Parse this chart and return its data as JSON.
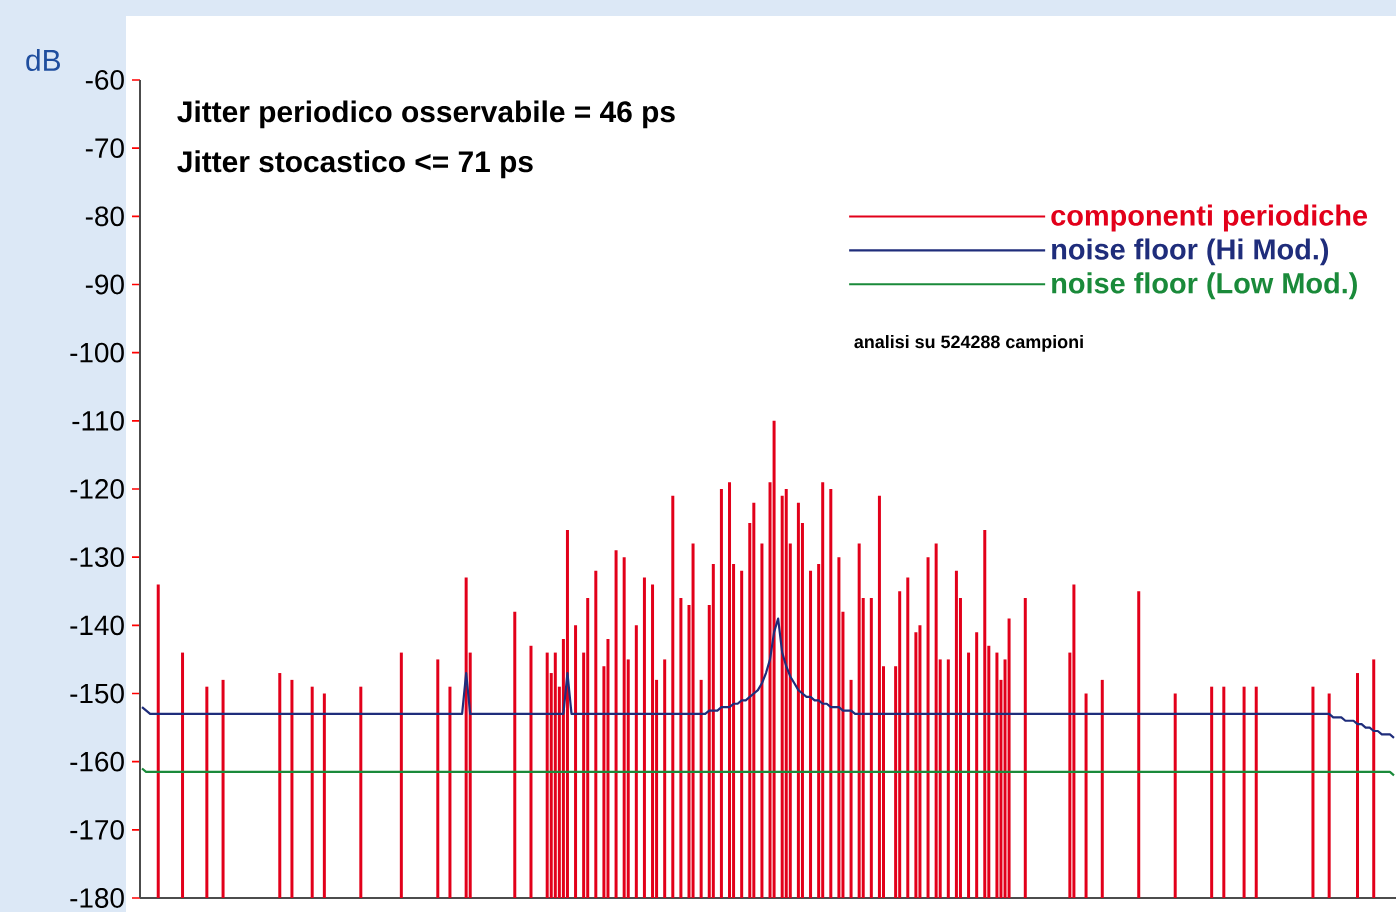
{
  "chart_data": {
    "type": "bar",
    "ylabel": "dB",
    "annotations": [
      "Jitter periodico osservabile = 46 ps",
      "Jitter stocastico <= 71 ps",
      "analisi su 524288 campioni"
    ],
    "ylim": [
      -180,
      -60
    ],
    "yticks": [
      -180,
      -170,
      -160,
      -150,
      -140,
      -130,
      -120,
      -110,
      -100,
      -90,
      -80,
      -70,
      -60
    ],
    "tick_labels": "y",
    "legend": "top right",
    "categories": [
      null,
      null,
      null,
      null,
      null,
      null,
      null,
      null,
      null,
      null,
      null,
      null,
      null,
      null,
      null,
      null,
      null,
      null,
      null,
      null,
      null,
      null,
      null,
      null,
      null,
      null,
      null,
      null,
      null,
      null,
      null,
      null,
      null,
      null,
      null,
      null,
      null,
      null,
      null,
      null,
      null,
      null,
      null,
      null,
      null,
      null,
      null,
      null,
      null,
      null,
      null,
      null,
      null,
      null,
      null,
      null,
      null,
      null,
      null,
      null,
      null,
      null,
      null,
      null,
      null,
      null,
      null,
      null,
      null,
      null,
      null,
      null,
      null,
      null,
      null,
      null,
      null,
      null,
      null,
      null,
      null,
      null,
      null,
      null,
      null,
      null,
      null,
      null,
      null,
      null,
      null,
      null,
      null,
      null,
      null,
      null,
      null,
      null,
      null,
      null,
      null,
      null,
      null,
      null,
      null,
      null,
      null,
      null,
      null,
      null,
      null,
      null,
      null,
      null,
      null,
      null,
      null,
      null,
      null,
      null,
      null,
      null,
      null,
      null,
      null,
      null,
      null,
      null,
      null,
      null,
      null,
      null,
      null,
      null,
      null,
      null,
      null,
      null,
      null,
      null,
      null,
      null,
      null,
      null,
      null,
      null,
      null,
      null,
      null,
      null,
      null,
      null,
      null,
      null,
      null,
      null,
      null,
      null,
      null,
      null,
      null,
      null,
      null,
      null,
      null,
      null,
      null,
      null,
      null,
      null,
      null,
      null,
      null,
      null,
      null,
      null,
      null,
      null,
      null,
      null,
      null,
      null,
      null,
      null,
      null,
      null,
      null,
      null,
      null,
      null,
      null,
      null,
      null,
      null,
      null,
      null,
      null,
      null,
      null,
      null,
      null,
      null,
      null,
      null,
      null,
      null,
      null,
      null,
      null,
      null,
      null,
      null,
      null,
      null,
      null,
      null,
      null,
      null,
      null,
      null,
      null,
      null,
      null,
      null,
      null,
      null,
      null,
      null,
      null,
      null,
      null,
      null,
      null,
      null,
      null,
      null,
      null,
      null,
      null,
      null,
      null,
      null,
      null,
      null,
      null,
      null,
      null,
      null,
      null,
      null,
      null,
      null,
      null,
      null,
      null,
      null,
      null,
      null,
      null,
      null,
      null,
      null,
      null,
      null,
      null,
      null,
      null,
      null,
      null,
      null,
      null,
      null,
      null,
      null,
      null,
      null,
      null,
      null,
      null,
      null,
      null,
      null,
      null,
      null,
      null,
      null,
      null,
      null,
      null,
      null,
      null,
      null,
      null,
      null,
      null,
      null,
      null,
      null,
      null,
      null,
      null,
      null,
      null,
      null,
      null,
      null,
      null,
      null,
      null,
      null
    ],
    "series": [
      {
        "name": "componenti  periodiche",
        "color": "#e2001a",
        "values": [
          null,
          null,
          null,
          null,
          46,
          null,
          null,
          null,
          null,
          null,
          36,
          null,
          null,
          null,
          null,
          null,
          31,
          null,
          null,
          null,
          32,
          null,
          null,
          null,
          null,
          null,
          null,
          null,
          null,
          null,
          null,
          null,
          null,
          null,
          33,
          null,
          null,
          32,
          null,
          null,
          null,
          null,
          31,
          null,
          null,
          30,
          null,
          null,
          null,
          null,
          null,
          null,
          null,
          null,
          31,
          null,
          null,
          null,
          null,
          null,
          null,
          null,
          null,
          null,
          36,
          null,
          null,
          null,
          null,
          null,
          null,
          null,
          null,
          35,
          null,
          null,
          31,
          null,
          null,
          null,
          47,
          36,
          null,
          null,
          null,
          null,
          null,
          null,
          null,
          null,
          null,
          null,
          42,
          null,
          null,
          null,
          37,
          null,
          null,
          null,
          36,
          33,
          36,
          31,
          38,
          54,
          null,
          40,
          null,
          36,
          44,
          null,
          48,
          null,
          34,
          38,
          null,
          51,
          null,
          50,
          35,
          null,
          40,
          null,
          47,
          null,
          46,
          32,
          null,
          35,
          null,
          59,
          null,
          44,
          null,
          43,
          52,
          null,
          32,
          null,
          43,
          49,
          null,
          60,
          null,
          61,
          49,
          null,
          48,
          null,
          55,
          58,
          null,
          52,
          null,
          61,
          70,
          null,
          59,
          60,
          52,
          null,
          58,
          55,
          null,
          48,
          null,
          49,
          61,
          null,
          60,
          null,
          50,
          42,
          null,
          32,
          null,
          52,
          44,
          null,
          44,
          null,
          59,
          34,
          null,
          null,
          34,
          45,
          null,
          47,
          null,
          39,
          40,
          null,
          50,
          null,
          52,
          35,
          null,
          35,
          null,
          48,
          44,
          null,
          36,
          null,
          39,
          null,
          54,
          37,
          null,
          36,
          32,
          35,
          41,
          null,
          null,
          null,
          44,
          null,
          null,
          null,
          null,
          null,
          null,
          null,
          null,
          null,
          null,
          36,
          46,
          null,
          null,
          30,
          null,
          null,
          null,
          32,
          null,
          null,
          null,
          null,
          null,
          null,
          null,
          null,
          45,
          null,
          null,
          null,
          null,
          null,
          null,
          null,
          null,
          30,
          null,
          null,
          null,
          null,
          null,
          null,
          null,
          null,
          31,
          null,
          null,
          31,
          null,
          null,
          null,
          null,
          31,
          null,
          null,
          31,
          null,
          null,
          null,
          null,
          null,
          null,
          null,
          null,
          null,
          null,
          null,
          null,
          null,
          31,
          null,
          null,
          null,
          30,
          null,
          null,
          null,
          null,
          null,
          null,
          33,
          null,
          null,
          null,
          35,
          null,
          null,
          null,
          null,
          null
        ],
        "base": [
          null,
          null,
          null,
          null,
          -180,
          null,
          null,
          null,
          null,
          null,
          -180,
          null,
          null,
          null,
          null,
          null,
          -180,
          null,
          null,
          null,
          -180,
          null,
          null,
          null,
          null,
          null,
          null,
          null,
          null,
          null,
          null,
          null,
          null,
          null,
          -180,
          null,
          null,
          -180,
          null,
          null,
          null,
          null,
          -180,
          null,
          null,
          -180,
          null,
          null,
          null,
          null,
          null,
          null,
          null,
          null,
          -180,
          null,
          null,
          null,
          null,
          null,
          null,
          null,
          null,
          null,
          -180,
          null,
          null,
          null,
          null,
          null,
          null,
          null,
          null,
          -180,
          null,
          null,
          -180,
          null,
          null,
          null,
          -180,
          -180,
          null,
          null,
          null,
          null,
          null,
          null,
          null,
          null,
          null,
          null,
          -180,
          null,
          null,
          null,
          -180,
          null,
          null,
          null,
          -180,
          -180,
          -180,
          -180,
          -180,
          -180,
          null,
          -180,
          null,
          -180,
          -180,
          null,
          -180,
          null,
          -180,
          -180,
          null,
          -180,
          null,
          -180,
          -180,
          null,
          -180,
          null,
          -180,
          null,
          -180,
          -180,
          null,
          -180,
          null,
          -180,
          null,
          -180,
          null,
          -180,
          -180,
          null,
          -180,
          null,
          -180,
          -180,
          null,
          -180,
          null,
          -180,
          -180,
          null,
          -180,
          null,
          -180,
          -180,
          null,
          -180,
          null,
          -180,
          -180,
          null,
          -180,
          -180,
          -180,
          null,
          -180,
          -180,
          null,
          -180,
          null,
          -180,
          -180,
          null,
          -180,
          null,
          -180,
          -180,
          null,
          -180,
          null,
          -180,
          -180,
          null,
          -180,
          null,
          -180,
          -180,
          null,
          null,
          -180,
          -180,
          null,
          -180,
          null,
          -180,
          -180,
          null,
          -180,
          null,
          -180,
          -180,
          null,
          -180,
          null,
          -180,
          -180,
          null,
          -180,
          null,
          -180,
          null,
          -180,
          -180,
          null,
          -180,
          -180,
          -180,
          -180,
          null,
          null,
          null,
          -180,
          null,
          null,
          null,
          null,
          null,
          null,
          null,
          null,
          null,
          null,
          -180,
          -180,
          null,
          null,
          -180,
          null,
          null,
          null,
          -180,
          null,
          null,
          null,
          null,
          null,
          null,
          null,
          null,
          -180,
          null,
          null,
          null,
          null,
          null,
          null,
          null,
          null,
          -180,
          null,
          null,
          null,
          null,
          null,
          null,
          null,
          null,
          -180,
          null,
          null,
          -180,
          null,
          null,
          null,
          null,
          -180,
          null,
          null,
          -180,
          null,
          null,
          null,
          null,
          null,
          null,
          null,
          null,
          null,
          null,
          null,
          null,
          null,
          -180,
          null,
          null,
          null,
          -180,
          null,
          null,
          null,
          null,
          null,
          null,
          -180,
          null,
          null,
          null,
          -180,
          null,
          null,
          null,
          null,
          null
        ]
      },
      {
        "name": "noise floor (Hi Mod.)",
        "type": "line",
        "color": "#1f2d7b",
        "values": [
          -152,
          -152.5,
          -153,
          -153,
          -153,
          -153,
          -153,
          -153,
          -153,
          -153,
          -153,
          -153,
          -153,
          -153,
          -153,
          -153,
          -153,
          -153,
          -153,
          -153,
          -153,
          -153,
          -153,
          -153,
          -153,
          -153,
          -153,
          -153,
          -153,
          -153,
          -153,
          -153,
          -153,
          -153,
          -153,
          -153,
          -153,
          -153,
          -153,
          -153,
          -153,
          -153,
          -153,
          -153,
          -153,
          -153,
          -153,
          -153,
          -153,
          -153,
          -153,
          -153,
          -153,
          -153,
          -153,
          -153,
          -153,
          -153,
          -153,
          -153,
          -153,
          -153,
          -153,
          -153,
          -153,
          -153,
          -153,
          -153,
          -153,
          -153,
          -153,
          -153,
          -153,
          -153,
          -153,
          -153,
          -153,
          -153,
          -153,
          -153,
          -147,
          -153,
          -153,
          -153,
          -153,
          -153,
          -153,
          -153,
          -153,
          -153,
          -153,
          -153,
          -153,
          -153,
          -153,
          -153,
          -153,
          -153,
          -153,
          -153,
          -153,
          -153,
          -153,
          -153,
          -153,
          -147,
          -153,
          -153,
          -153,
          -153,
          -153,
          -153,
          -153,
          -153,
          -153,
          -153,
          -153,
          -153,
          -153,
          -153,
          -153,
          -153,
          -153,
          -153,
          -153,
          -153,
          -153,
          -153,
          -153,
          -153,
          -153,
          -153,
          -153,
          -153,
          -153,
          -153,
          -153,
          -153,
          -153,
          -153,
          -152.5,
          -152.5,
          -152.5,
          -152,
          -152,
          -152,
          -151.5,
          -151.5,
          -151,
          -151,
          -150.5,
          -150,
          -149.5,
          -148.5,
          -147,
          -145,
          -141,
          -139,
          -144,
          -146,
          -147.5,
          -148.5,
          -149.5,
          -150,
          -150.5,
          -150.5,
          -151,
          -151,
          -151.5,
          -151.5,
          -152,
          -152,
          -152,
          -152.5,
          -152.5,
          -152.5,
          -153,
          -153,
          -153,
          -153,
          -153,
          -153,
          -153,
          -153,
          -153,
          -153,
          -153,
          -153,
          -153,
          -153,
          -153,
          -153,
          -153,
          -153,
          -153,
          -153,
          -153,
          -153,
          -153,
          -153,
          -153,
          -153,
          -153,
          -153,
          -153,
          -153,
          -153,
          -153,
          -153,
          -153,
          -153,
          -153,
          -153,
          -153,
          -153,
          -153,
          -153,
          -153,
          -153,
          -153,
          -153,
          -153,
          -153,
          -153,
          -153,
          -153,
          -153,
          -153,
          -153,
          -153,
          -153,
          -153,
          -153,
          -153,
          -153,
          -153,
          -153,
          -153,
          -153,
          -153,
          -153,
          -153,
          -153,
          -153,
          -153,
          -153,
          -153,
          -153,
          -153,
          -153,
          -153,
          -153,
          -153,
          -153,
          -153,
          -153,
          -153,
          -153,
          -153,
          -153,
          -153,
          -153,
          -153,
          -153,
          -153,
          -153,
          -153,
          -153,
          -153,
          -153,
          -153,
          -153,
          -153,
          -153,
          -153,
          -153,
          -153,
          -153,
          -153,
          -153,
          -153,
          -153,
          -153,
          -153,
          -153,
          -153,
          -153,
          -153,
          -153,
          -153,
          -153,
          -153,
          -153,
          -153,
          -153.5,
          -153.5,
          -153.5,
          -154,
          -154,
          -154,
          -154.5,
          -154.5,
          -155,
          -155,
          -155.5,
          -155.5,
          -156,
          -156,
          -156,
          -156.5
        ]
      },
      {
        "name": "noise floor (Low Mod.)",
        "type": "line",
        "color": "#1a8a3a",
        "values": [
          -161,
          -161.5,
          -161.5,
          -161.5,
          -161.5,
          -161.5,
          -161.5,
          -161.5,
          -161.5,
          -161.5,
          -161.5,
          -161.5,
          -161.5,
          -161.5,
          -161.5,
          -161.5,
          -161.5,
          -161.5,
          -161.5,
          -161.5,
          -161.5,
          -161.5,
          -161.5,
          -161.5,
          -161.5,
          -161.5,
          -161.5,
          -161.5,
          -161.5,
          -161.5,
          -161.5,
          -161.5,
          -161.5,
          -161.5,
          -161.5,
          -161.5,
          -161.5,
          -161.5,
          -161.5,
          -161.5,
          -161.5,
          -161.5,
          -161.5,
          -161.5,
          -161.5,
          -161.5,
          -161.5,
          -161.5,
          -161.5,
          -161.5,
          -161.5,
          -161.5,
          -161.5,
          -161.5,
          -161.5,
          -161.5,
          -161.5,
          -161.5,
          -161.5,
          -161.5,
          -161.5,
          -161.5,
          -161.5,
          -161.5,
          -161.5,
          -161.5,
          -161.5,
          -161.5,
          -161.5,
          -161.5,
          -161.5,
          -161.5,
          -161.5,
          -161.5,
          -161.5,
          -161.5,
          -161.5,
          -161.5,
          -161.5,
          -161.5,
          -161.5,
          -161.5,
          -161.5,
          -161.5,
          -161.5,
          -161.5,
          -161.5,
          -161.5,
          -161.5,
          -161.5,
          -161.5,
          -161.5,
          -161.5,
          -161.5,
          -161.5,
          -161.5,
          -161.5,
          -161.5,
          -161.5,
          -161.5,
          -161.5,
          -161.5,
          -161.5,
          -161.5,
          -161.5,
          -161.5,
          -161.5,
          -161.5,
          -161.5,
          -161.5,
          -161.5,
          -161.5,
          -161.5,
          -161.5,
          -161.5,
          -161.5,
          -161.5,
          -161.5,
          -161.5,
          -161.5,
          -161.5,
          -161.5,
          -161.5,
          -161.5,
          -161.5,
          -161.5,
          -161.5,
          -161.5,
          -161.5,
          -161.5,
          -161.5,
          -161.5,
          -161.5,
          -161.5,
          -161.5,
          -161.5,
          -161.5,
          -161.5,
          -161.5,
          -161.5,
          -161.5,
          -161.5,
          -161.5,
          -161.5,
          -161.5,
          -161.5,
          -161.5,
          -161.5,
          -161.5,
          -161.5,
          -161.5,
          -161.5,
          -161.5,
          -161.5,
          -161.5,
          -161.5,
          -161.5,
          -161.5,
          -161.5,
          -161.5,
          -161.5,
          -161.5,
          -161.5,
          -161.5,
          -161.5,
          -161.5,
          -161.5,
          -161.5,
          -161.5,
          -161.5,
          -161.5,
          -161.5,
          -161.5,
          -161.5,
          -161.5,
          -161.5,
          -161.5,
          -161.5,
          -161.5,
          -161.5,
          -161.5,
          -161.5,
          -161.5,
          -161.5,
          -161.5,
          -161.5,
          -161.5,
          -161.5,
          -161.5,
          -161.5,
          -161.5,
          -161.5,
          -161.5,
          -161.5,
          -161.5,
          -161.5,
          -161.5,
          -161.5,
          -161.5,
          -161.5,
          -161.5,
          -161.5,
          -161.5,
          -161.5,
          -161.5,
          -161.5,
          -161.5,
          -161.5,
          -161.5,
          -161.5,
          -161.5,
          -161.5,
          -161.5,
          -161.5,
          -161.5,
          -161.5,
          -161.5,
          -161.5,
          -161.5,
          -161.5,
          -161.5,
          -161.5,
          -161.5,
          -161.5,
          -161.5,
          -161.5,
          -161.5,
          -161.5,
          -161.5,
          -161.5,
          -161.5,
          -161.5,
          -161.5,
          -161.5,
          -161.5,
          -161.5,
          -161.5,
          -161.5,
          -161.5,
          -161.5,
          -161.5,
          -161.5,
          -161.5,
          -161.5,
          -161.5,
          -161.5,
          -161.5,
          -161.5,
          -161.5,
          -161.5,
          -161.5,
          -161.5,
          -161.5,
          -161.5,
          -161.5,
          -161.5,
          -161.5,
          -161.5,
          -161.5,
          -161.5,
          -161.5,
          -161.5,
          -161.5,
          -161.5,
          -161.5,
          -161.5,
          -161.5,
          -161.5,
          -161.5,
          -161.5,
          -161.5,
          -161.5,
          -161.5,
          -161.5,
          -161.5,
          -161.5,
          -161.5,
          -161.5,
          -161.5,
          -161.5,
          -161.5,
          -161.5,
          -161.5,
          -161.5,
          -161.5,
          -161.5,
          -161.5,
          -161.5,
          -161.5,
          -161.5,
          -161.5,
          -161.5,
          -161.5,
          -161.5,
          -161.5,
          -161.5,
          -161.5,
          -161.5,
          -161.5,
          -161.5,
          -161.5,
          -161.5,
          -161.5,
          -161.5,
          -161.5,
          -161.5,
          -161.5,
          -161.5,
          -161.5,
          -162
        ]
      }
    ]
  }
}
